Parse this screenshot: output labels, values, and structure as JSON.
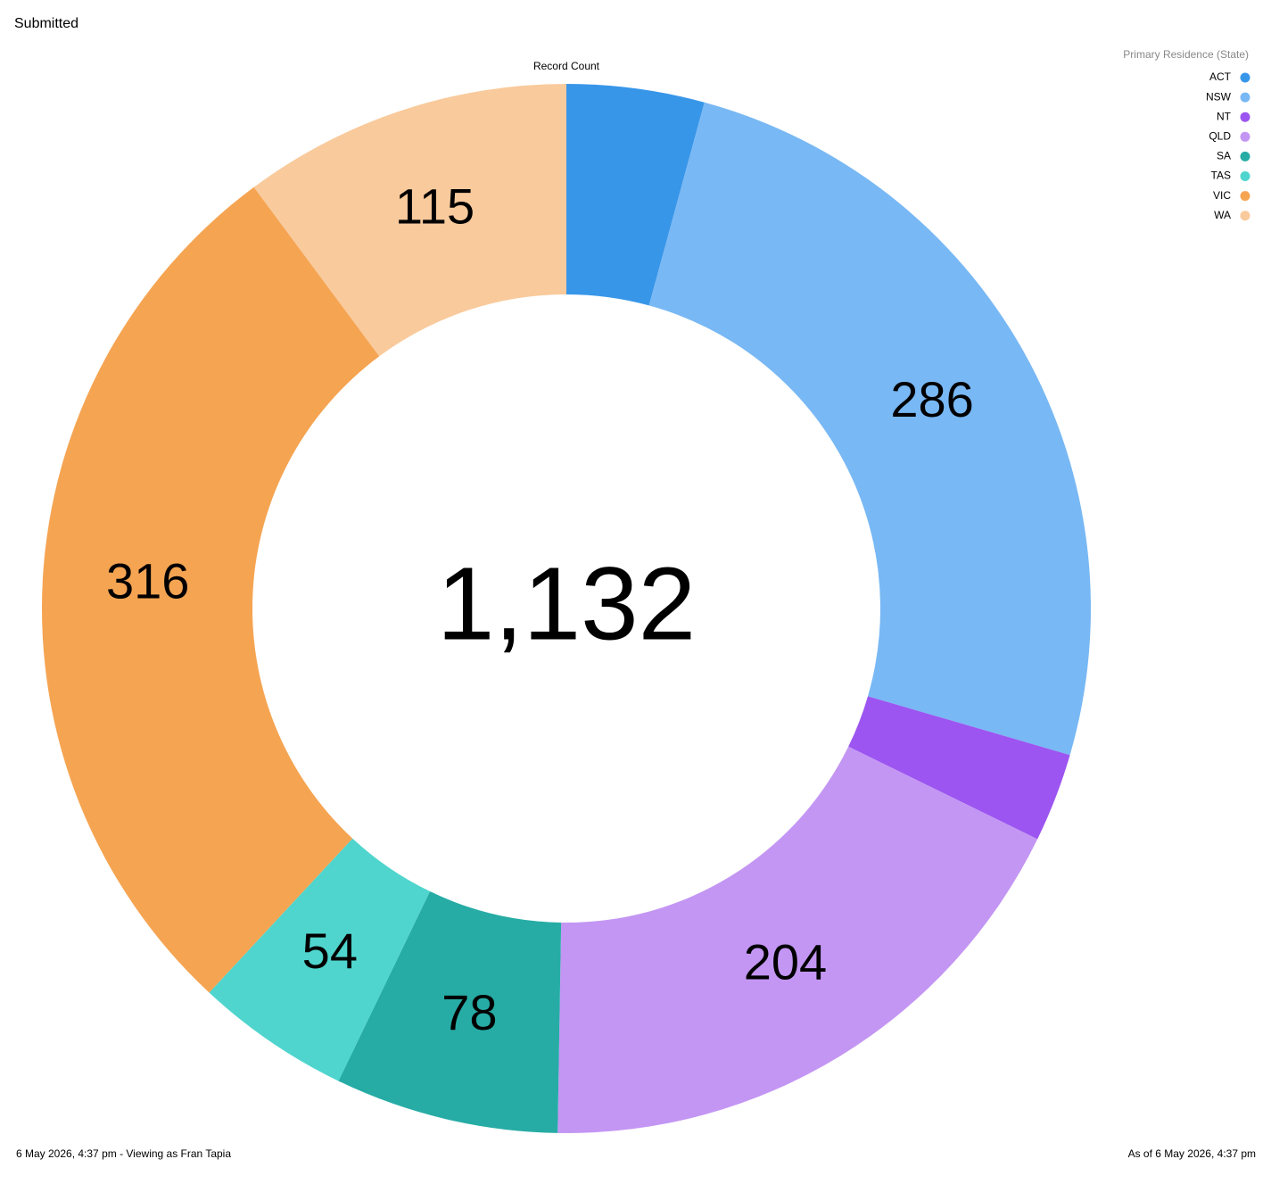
{
  "header": "Submitted",
  "chart_data": {
    "type": "donut",
    "title": "Record Count",
    "legend_title": "Primary Residence (State)",
    "categories": [
      "ACT",
      "NSW",
      "NT",
      "QLD",
      "SA",
      "TAS",
      "VIC",
      "WA"
    ],
    "values": [
      48,
      286,
      31,
      204,
      78,
      54,
      316,
      115
    ],
    "colors": [
      "#3896e9",
      "#78b8f4",
      "#9c55f0",
      "#c396f3",
      "#26aca5",
      "#4fd5cd",
      "#f5a452",
      "#f9ca9c"
    ],
    "total": {
      "value": 1132,
      "label": "1,132"
    },
    "legend": "top-right"
  },
  "footer": {
    "left": "6 May 2026, 4:37 pm - Viewing as Fran Tapia",
    "right": "As of 6 May 2026, 4:37 pm"
  }
}
